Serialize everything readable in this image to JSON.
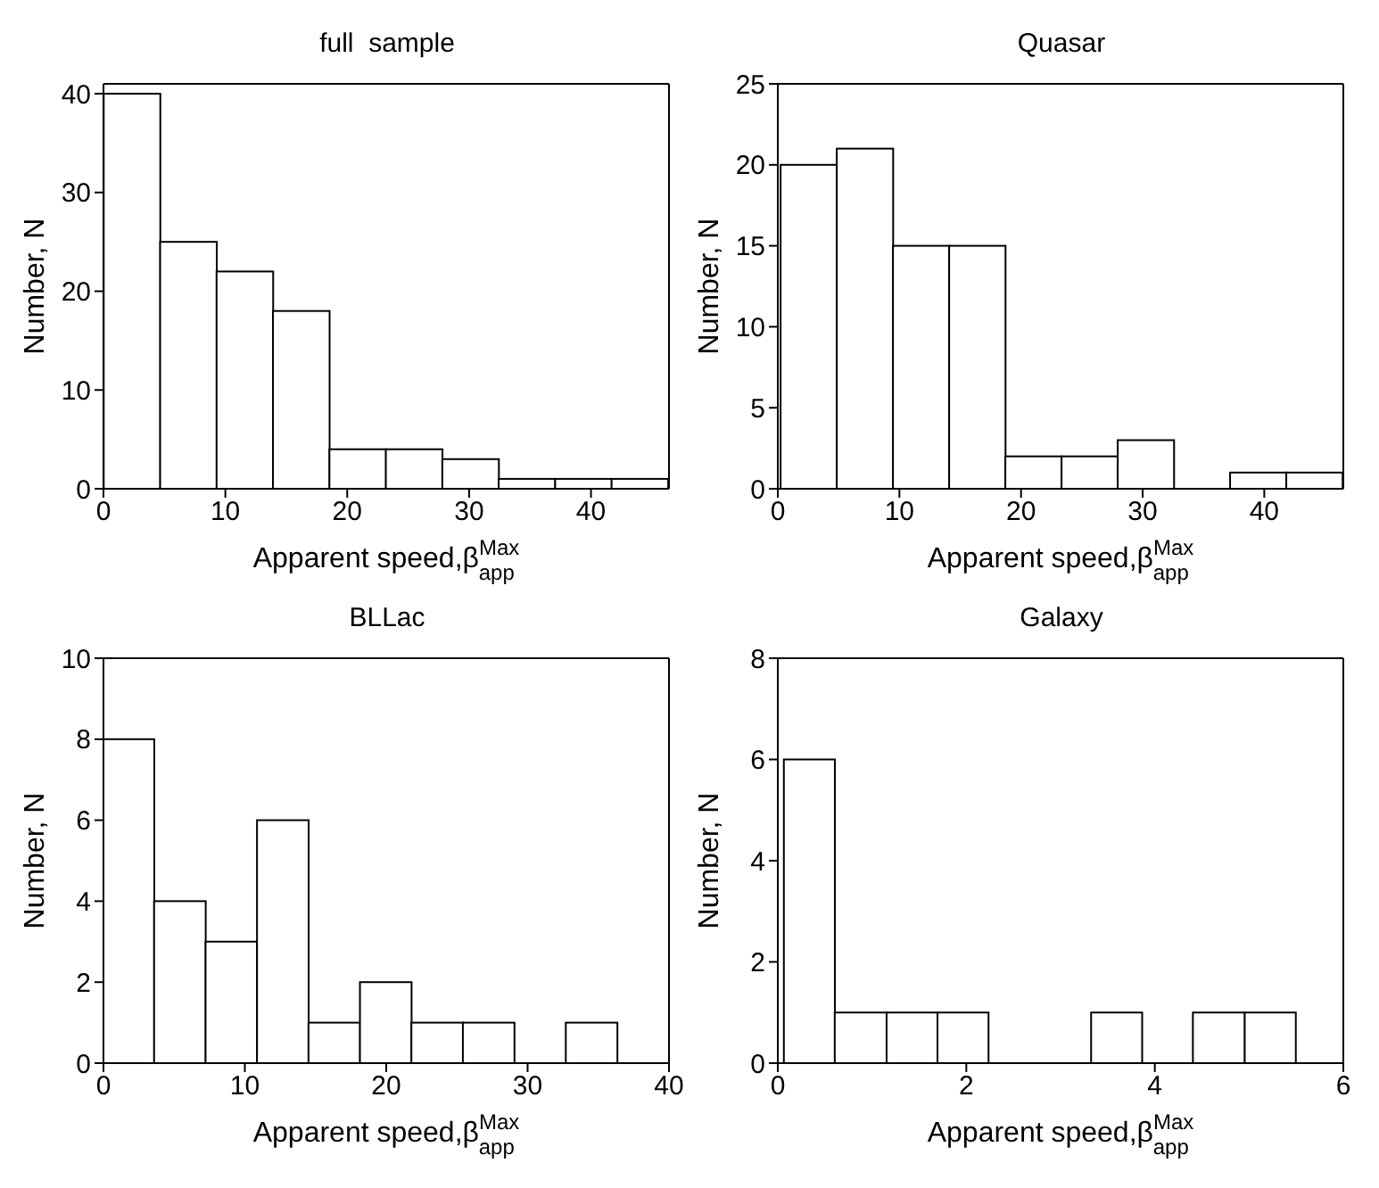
{
  "chart_data": [
    {
      "type": "histogram",
      "title": "full  sample",
      "xlabel": "Apparent speed,β$^{Max}$$_{app}$",
      "ylabel": "Number, N",
      "color": "#ffffff",
      "bins": [
        0,
        4.63,
        9.26,
        13.89,
        18.52,
        23.15,
        27.78,
        32.41,
        37.04,
        41.67,
        46.3
      ],
      "values": [
        40,
        25,
        22,
        18,
        4,
        4,
        3,
        1,
        1,
        1
      ],
      "xlim": [
        0,
        46.4
      ],
      "ylim": [
        0,
        41
      ],
      "xticks": [
        0,
        10,
        20,
        30,
        40
      ],
      "yticks": [
        0,
        10,
        20,
        30,
        40
      ],
      "grid": false
    },
    {
      "type": "histogram",
      "title": "Quasar",
      "xlabel": "Apparent speed,β$^{Max}$$_{app}$",
      "ylabel": "Number, N",
      "color": "#ffffff",
      "bins": [
        0.2,
        4.82,
        9.44,
        14.06,
        18.68,
        23.3,
        27.92,
        32.54,
        37.16,
        41.78,
        46.4
      ],
      "values": [
        20,
        21,
        15,
        15,
        2,
        2,
        3,
        0,
        1,
        1
      ],
      "xlim": [
        0,
        46.5
      ],
      "ylim": [
        0,
        25
      ],
      "xticks": [
        0,
        10,
        20,
        30,
        40
      ],
      "yticks": [
        0,
        5,
        10,
        15,
        20,
        25
      ],
      "grid": false
    },
    {
      "type": "histogram",
      "title": "BLLac",
      "xlabel": "Apparent speed,β$^{Max}$$_{app}$",
      "ylabel": "Number, N",
      "color": "#ffffff",
      "bins": [
        0,
        3.64,
        7.28,
        10.92,
        14.56,
        18.2,
        21.84,
        25.48,
        29.12,
        32.76,
        36.4
      ],
      "values": [
        8,
        4,
        3,
        6,
        1,
        2,
        1,
        1,
        0,
        1
      ],
      "xlim": [
        0,
        40
      ],
      "ylim": [
        0,
        10
      ],
      "xticks": [
        0,
        10,
        20,
        30,
        40
      ],
      "yticks": [
        0,
        2,
        4,
        6,
        8,
        10
      ],
      "grid": false
    },
    {
      "type": "histogram",
      "title": "Galaxy",
      "xlabel": "Apparent speed,β$^{Max}$$_{app}$",
      "ylabel": "Number, N",
      "color": "#ffffff",
      "bins": [
        0.07,
        0.61,
        1.16,
        1.7,
        2.24,
        3.33,
        3.87,
        4.41,
        4.96,
        5.5
      ],
      "values": [
        6,
        1,
        1,
        1,
        0,
        1,
        0,
        1,
        1
      ],
      "xlim": [
        0,
        6
      ],
      "ylim": [
        0,
        8
      ],
      "xticks": [
        0,
        2,
        4,
        6
      ],
      "yticks": [
        0,
        2,
        4,
        6,
        8
      ],
      "grid": false
    }
  ]
}
